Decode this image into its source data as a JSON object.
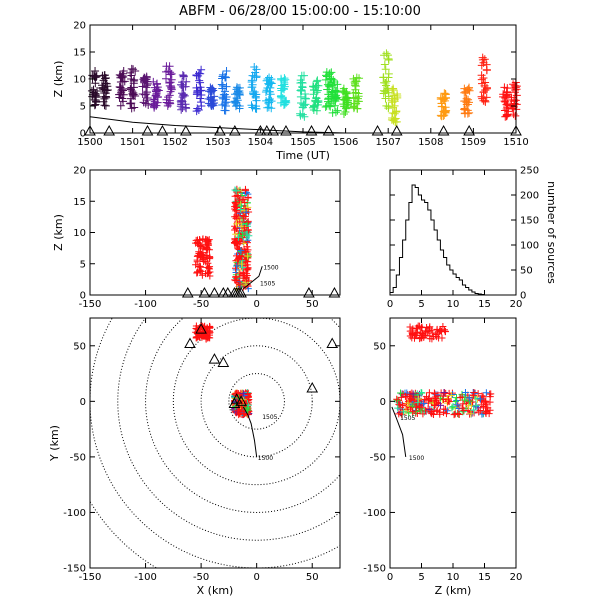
{
  "title": "ABFM - 06/28/00 15:00:00 - 15:10:00",
  "colors": {
    "track": "#000000",
    "station": "#000000",
    "range_rings": "#000000",
    "time_scale": [
      "#2a0a2a",
      "#4b0a55",
      "#6a1a9a",
      "#3c2ad0",
      "#1a73e8",
      "#14a8f0",
      "#21e0e0",
      "#22e0a0",
      "#22e03a",
      "#7de020",
      "#c8e020",
      "#e8d020",
      "#ff9a10",
      "#ff5a10",
      "#ff1010"
    ]
  },
  "chart_data": [
    {
      "panel": "time-height",
      "type": "scatter",
      "xlabel": "Time (UT)",
      "ylabel": "Z (km)",
      "xlim": [
        1500,
        1510
      ],
      "ylim": [
        0,
        20
      ],
      "xticks": [
        1500,
        1501,
        1502,
        1503,
        1504,
        1505,
        1506,
        1507,
        1508,
        1509,
        1510
      ],
      "yticks": [
        0,
        5,
        10,
        15,
        20
      ],
      "flash_clusters": [
        {
          "t": 1500.1,
          "zmin": 4.5,
          "zmax": 11.5,
          "color": "#2a0a2a"
        },
        {
          "t": 1500.35,
          "zmin": 5.0,
          "zmax": 11.0,
          "color": "#2a0a2a"
        },
        {
          "t": 1500.75,
          "zmin": 5.0,
          "zmax": 11.5,
          "color": "#4b0a55"
        },
        {
          "t": 1501.0,
          "zmin": 4.5,
          "zmax": 12.0,
          "color": "#4b0a55"
        },
        {
          "t": 1501.3,
          "zmin": 5.0,
          "zmax": 10.5,
          "color": "#5a1470"
        },
        {
          "t": 1501.55,
          "zmin": 4.5,
          "zmax": 9.5,
          "color": "#6a1a9a"
        },
        {
          "t": 1501.85,
          "zmin": 5.0,
          "zmax": 12.5,
          "color": "#6a1a9a"
        },
        {
          "t": 1502.2,
          "zmin": 4.0,
          "zmax": 11.0,
          "color": "#5a2ab0"
        },
        {
          "t": 1502.55,
          "zmin": 4.0,
          "zmax": 12.0,
          "color": "#3c2ad0"
        },
        {
          "t": 1502.85,
          "zmin": 5.0,
          "zmax": 8.5,
          "color": "#2a4ad8"
        },
        {
          "t": 1503.15,
          "zmin": 4.0,
          "zmax": 11.5,
          "color": "#1a73e8"
        },
        {
          "t": 1503.45,
          "zmin": 4.5,
          "zmax": 8.5,
          "color": "#1a8ae8"
        },
        {
          "t": 1503.85,
          "zmin": 4.0,
          "zmax": 12.5,
          "color": "#14a8f0"
        },
        {
          "t": 1504.2,
          "zmin": 4.5,
          "zmax": 11.0,
          "color": "#14b8f0"
        },
        {
          "t": 1504.55,
          "zmin": 5.0,
          "zmax": 10.5,
          "color": "#21e0e0"
        },
        {
          "t": 1505.0,
          "zmin": 3.0,
          "zmax": 11.5,
          "color": "#22e0a0"
        },
        {
          "t": 1505.3,
          "zmin": 4.0,
          "zmax": 10.0,
          "color": "#22e080"
        },
        {
          "t": 1505.6,
          "zmin": 4.5,
          "zmax": 11.5,
          "color": "#22e03a"
        },
        {
          "t": 1505.75,
          "zmin": 3.5,
          "zmax": 10.0,
          "color": "#22e03a"
        },
        {
          "t": 1506.0,
          "zmin": 3.5,
          "zmax": 8.5,
          "color": "#40e020"
        },
        {
          "t": 1506.25,
          "zmin": 4.0,
          "zmax": 10.5,
          "color": "#60e020"
        },
        {
          "t": 1506.95,
          "zmin": 4.0,
          "zmax": 16.0,
          "color": "#a0e020"
        },
        {
          "t": 1507.15,
          "zmin": 2.0,
          "zmax": 8.5,
          "color": "#c8e020"
        },
        {
          "t": 1508.3,
          "zmin": 3.0,
          "zmax": 7.5,
          "color": "#ff9a10"
        },
        {
          "t": 1508.85,
          "zmin": 3.5,
          "zmax": 8.5,
          "color": "#ff7a10"
        },
        {
          "t": 1509.25,
          "zmin": 5.0,
          "zmax": 14.0,
          "color": "#ff2010"
        },
        {
          "t": 1509.75,
          "zmin": 3.0,
          "zmax": 9.0,
          "color": "#ff1010"
        },
        {
          "t": 1509.95,
          "zmin": 3.0,
          "zmax": 10.0,
          "color": "#ff1010"
        }
      ],
      "track_line": [
        [
          1500,
          3.0
        ],
        [
          1501,
          2.0
        ],
        [
          1502,
          1.4
        ],
        [
          1503,
          1.0
        ],
        [
          1504,
          0.6
        ],
        [
          1505,
          0.2
        ],
        [
          1506,
          0.0
        ],
        [
          1507,
          0.0
        ]
      ],
      "station_markers_t": [
        1500.0,
        1500.45,
        1501.35,
        1501.7,
        1502.25,
        1503.05,
        1503.4,
        1504.0,
        1504.15,
        1504.3,
        1504.6,
        1505.2,
        1505.6,
        1506.75,
        1507.2,
        1508.3,
        1508.9,
        1510.0
      ]
    },
    {
      "panel": "x-z",
      "type": "scatter",
      "xlabel": "",
      "ylabel": "Z (km)",
      "xlim": [
        -150,
        75
      ],
      "ylim": [
        0,
        20
      ],
      "xticks": [
        -150,
        -100,
        -50,
        0,
        50
      ],
      "yticks": [
        0,
        5,
        10,
        15,
        20
      ],
      "clusters": [
        {
          "name": "main",
          "x": [
            -20,
            -7
          ],
          "z": [
            1,
            17
          ],
          "dominant": "#ff1010",
          "mix": [
            "#22e0a0",
            "#1a73e8",
            "#e8d020",
            "#22e03a"
          ]
        },
        {
          "name": "west",
          "x": [
            -55,
            -42
          ],
          "z": [
            3,
            9
          ],
          "dominant": "#ff1010",
          "mix": []
        }
      ],
      "track_labels": [
        "1500",
        "1505"
      ],
      "track": [
        [
          5,
          4.6
        ],
        [
          2,
          3.0
        ],
        [
          -5,
          2.0
        ],
        [
          -12,
          1.0
        ]
      ],
      "stations_x": [
        -62,
        -47,
        -38,
        -30,
        -26,
        -20,
        -18,
        -16,
        -14,
        47,
        70
      ]
    },
    {
      "panel": "histogram",
      "type": "bar",
      "xlabel": "",
      "ylabel": "number of sources",
      "xlim": [
        0,
        20
      ],
      "ylim": [
        0,
        250
      ],
      "xticks": [
        0,
        5,
        10,
        15,
        20
      ],
      "yticks": [
        0,
        50,
        100,
        150,
        200,
        250
      ],
      "bin_width": 0.5,
      "bins_start": 0,
      "counts": [
        5,
        15,
        40,
        75,
        110,
        150,
        185,
        220,
        215,
        200,
        190,
        185,
        170,
        150,
        130,
        110,
        90,
        75,
        60,
        50,
        42,
        35,
        30,
        20,
        15,
        10,
        6,
        3,
        2,
        1
      ]
    },
    {
      "panel": "plan-view",
      "type": "scatter",
      "xlabel": "X (km)",
      "ylabel": "Y (km)",
      "xlim": [
        -150,
        75
      ],
      "ylim": [
        -150,
        75
      ],
      "xticks": [
        -150,
        -100,
        -50,
        0,
        50
      ],
      "yticks": [
        -150,
        -100,
        -50,
        0,
        50
      ],
      "range_rings_km": [
        25,
        50,
        75,
        100,
        125,
        150,
        175
      ],
      "clusters": [
        {
          "name": "main",
          "x": [
            -20,
            -7
          ],
          "y": [
            -12,
            8
          ],
          "dominant": "#ff1010"
        },
        {
          "name": "north",
          "x": [
            -55,
            -42
          ],
          "y": [
            56,
            68
          ],
          "dominant": "#ff1010"
        }
      ],
      "track": [
        [
          0,
          -50
        ],
        [
          -2,
          -35
        ],
        [
          -5,
          -20
        ],
        [
          -8,
          -12
        ],
        [
          -12,
          -5
        ]
      ],
      "track_labels": [
        "1500",
        "1505"
      ],
      "stations": [
        [
          -50,
          65
        ],
        [
          -38,
          38
        ],
        [
          -30,
          35
        ],
        [
          -60,
          52
        ],
        [
          -20,
          -2
        ],
        [
          -18,
          2
        ],
        [
          -14,
          0
        ],
        [
          50,
          12
        ],
        [
          68,
          52
        ]
      ]
    },
    {
      "panel": "z-y",
      "type": "scatter",
      "xlabel": "Z (km)",
      "ylabel": "",
      "xlim": [
        0,
        20
      ],
      "ylim": [
        -150,
        75
      ],
      "xticks": [
        0,
        5,
        10,
        15,
        20
      ],
      "yticks": [
        -150,
        -100,
        -50,
        0,
        50
      ],
      "clusters": [
        {
          "name": "main",
          "z": [
            1,
            16
          ],
          "y": [
            -12,
            8
          ],
          "dominant": "#ff1010"
        },
        {
          "name": "north",
          "z": [
            3,
            9
          ],
          "y": [
            56,
            68
          ],
          "dominant": "#ff1010"
        }
      ],
      "track": [
        [
          2.5,
          -50
        ],
        [
          2.0,
          -30
        ],
        [
          1.0,
          -15
        ],
        [
          0.3,
          -5
        ]
      ],
      "track_labels": [
        "1500",
        "1505"
      ]
    }
  ]
}
